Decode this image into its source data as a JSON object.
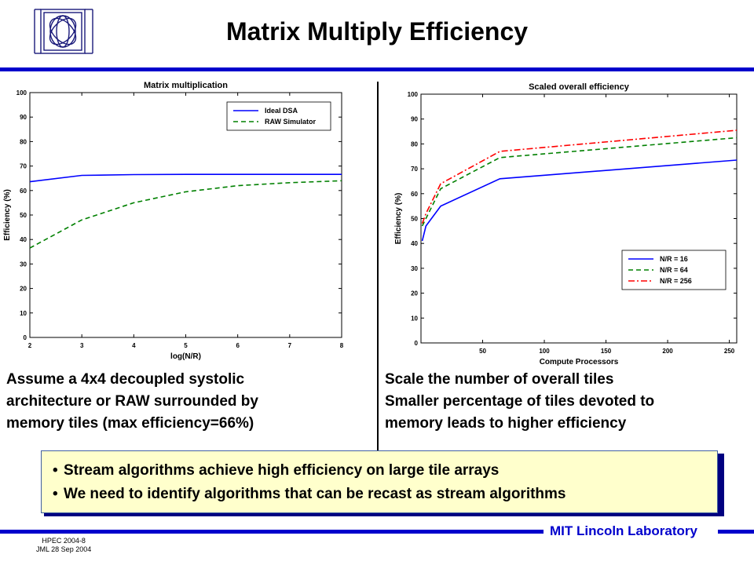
{
  "slide": {
    "title": "Matrix Multiply Efficiency",
    "logo_icon": "mit-ll-logo-icon",
    "lab_name": "MIT Lincoln Laboratory",
    "footer_lines": [
      "HPEC 2004-8",
      "JML 28 Sep 2004"
    ],
    "accent_color": "#0000cc",
    "callout_background": "#ffffcc"
  },
  "left_caption": [
    "Assume a 4x4 decoupled systolic",
    "architecture or RAW surrounded by",
    "memory tiles (max efficiency=66%)"
  ],
  "right_caption": [
    "Scale the number of overall tiles",
    "Smaller percentage of tiles devoted to",
    "memory leads to  higher efficiency"
  ],
  "callout": {
    "bullets": [
      "Stream algorithms achieve high efficiency on large tile arrays",
      "We need to identify algorithms that can be recast as stream algorithms"
    ]
  },
  "chart_data": [
    {
      "type": "line",
      "title": "Matrix multiplication",
      "xlabel": "log(N/R)",
      "ylabel": "Efficiency (%)",
      "xlim": [
        2,
        8
      ],
      "ylim": [
        0,
        100
      ],
      "xticks": [
        2,
        3,
        4,
        5,
        6,
        7,
        8
      ],
      "yticks": [
        0,
        10,
        20,
        30,
        40,
        50,
        60,
        70,
        80,
        90,
        100
      ],
      "grid": false,
      "legend_position": "top-right",
      "series": [
        {
          "name": "Ideal DSA",
          "color": "#0000ff",
          "dash": "solid",
          "x": [
            2,
            3,
            4,
            5,
            6,
            7,
            8
          ],
          "y": [
            63.6,
            66.2,
            66.5,
            66.6,
            66.6,
            66.6,
            66.6
          ]
        },
        {
          "name": "RAW Simulator",
          "color": "#008000",
          "dash": "dashed",
          "x": [
            2,
            3,
            4,
            5,
            6,
            7,
            8
          ],
          "y": [
            36.5,
            48,
            55,
            59.5,
            62,
            63.2,
            64
          ]
        }
      ]
    },
    {
      "type": "line",
      "title": "Scaled overall efficiency",
      "xlabel": "Compute Processors",
      "ylabel": "Efficiency (%)",
      "xlim": [
        0,
        256
      ],
      "ylim": [
        0,
        100
      ],
      "xticks": [
        50,
        100,
        150,
        200,
        250
      ],
      "yticks": [
        0,
        10,
        20,
        30,
        40,
        50,
        60,
        70,
        80,
        90,
        100
      ],
      "grid": false,
      "legend_position": "bottom-right",
      "series": [
        {
          "name": "N/R = 16",
          "color": "#0000ff",
          "dash": "solid",
          "x": [
            1,
            4,
            16,
            64,
            256
          ],
          "y": [
            41,
            47,
            55,
            66,
            73.5
          ]
        },
        {
          "name": "N/R = 64",
          "color": "#008000",
          "dash": "dashed",
          "x": [
            1,
            4,
            16,
            64,
            256
          ],
          "y": [
            47,
            50,
            62,
            74.5,
            82.5
          ]
        },
        {
          "name": "N/R = 256",
          "color": "#ff0000",
          "dash": "dashdot",
          "x": [
            1,
            4,
            16,
            64,
            256
          ],
          "y": [
            48,
            52,
            64,
            77,
            85.5
          ]
        }
      ]
    }
  ]
}
